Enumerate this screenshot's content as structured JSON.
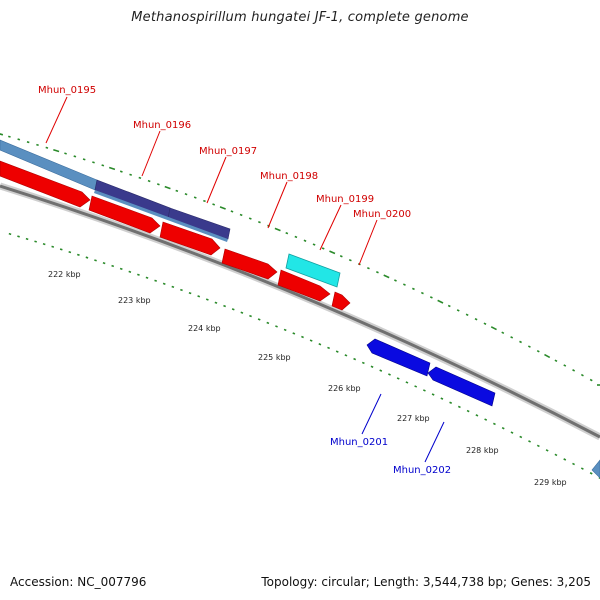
{
  "title": "Methanospirillum hungatei JF-1, complete genome",
  "footer": {
    "accession": "Accession: NC_007796",
    "topology": "Topology: circular; Length: 3,544,738 bp; Genes: 3,205"
  },
  "colors": {
    "forward_gene": "#ee0000",
    "reverse_gene": "#0a0ae0",
    "rna_gene": "#22e6e6",
    "cds_feature": "#5a8fc0",
    "cds_feature_dark": "#3a3a8c",
    "backbone": "#7a7a7a",
    "gc_dots": "#2a8a2a"
  },
  "gene_labels": {
    "forward": [
      "Mhun_0195",
      "Mhun_0196",
      "Mhun_0197",
      "Mhun_0198",
      "Mhun_0199",
      "Mhun_0200"
    ],
    "reverse": [
      "Mhun_0201",
      "Mhun_0202"
    ]
  },
  "ticks": [
    "222 kbp",
    "223 kbp",
    "224 kbp",
    "225 kbp",
    "226 kbp",
    "227 kbp",
    "228 kbp",
    "229 kbp"
  ]
}
